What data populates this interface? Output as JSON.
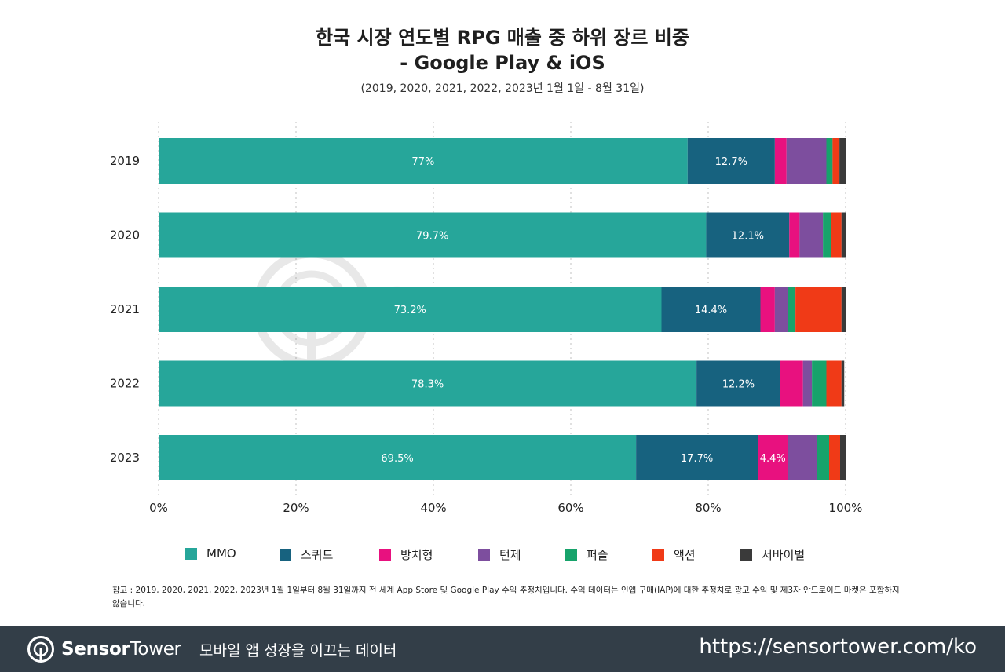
{
  "title_line1": "한국 시장 연도별 RPG 매출 중 하위 장르 비중",
  "title_line2": "- Google Play & iOS",
  "subtitle": "(2019, 2020, 2021, 2022, 2023년 1월 1일 - 8월 31일)",
  "watermark_text": "SensorTower",
  "colors": {
    "MMO": "#26a69a",
    "squad": "#17627f",
    "idle": "#e8117f",
    "turn": "#7d4e9e",
    "puzzle": "#17a36b",
    "action": "#f03a17",
    "survival": "#3a3a3a",
    "footer_bg": "#333e48",
    "grid": "#cfcfcf"
  },
  "chart_data": {
    "type": "bar",
    "orientation": "horizontal",
    "stacked": true,
    "categories": [
      "2019",
      "2020",
      "2021",
      "2022",
      "2023"
    ],
    "xlim": [
      0,
      100
    ],
    "x_ticks": [
      "0%",
      "20%",
      "40%",
      "60%",
      "80%",
      "100%"
    ],
    "grid": true,
    "legend_position": "bottom",
    "series": [
      {
        "name": "MMO",
        "color_key": "MMO",
        "values": [
          77.0,
          79.7,
          73.2,
          78.3,
          69.5
        ],
        "labels": [
          "77%",
          "79.7%",
          "73.2%",
          "78.3%",
          "69.5%"
        ]
      },
      {
        "name": "스쿼드",
        "color_key": "squad",
        "values": [
          12.7,
          12.1,
          14.4,
          12.2,
          17.7
        ],
        "labels": [
          "12.7%",
          "12.1%",
          "14.4%",
          "12.2%",
          "17.7%"
        ]
      },
      {
        "name": "방치형",
        "color_key": "idle",
        "values": [
          1.7,
          1.5,
          2.1,
          3.3,
          4.4
        ],
        "labels": [
          "",
          "",
          "",
          "",
          "4.4%"
        ]
      },
      {
        "name": "턴제",
        "color_key": "turn",
        "values": [
          5.8,
          3.4,
          1.9,
          1.3,
          4.2
        ],
        "labels": [
          "",
          "",
          "",
          "",
          ""
        ]
      },
      {
        "name": "퍼즐",
        "color_key": "puzzle",
        "values": [
          0.9,
          1.2,
          1.1,
          2.1,
          1.8
        ],
        "labels": [
          "",
          "",
          "",
          "",
          ""
        ]
      },
      {
        "name": "액션",
        "color_key": "action",
        "values": [
          1.0,
          1.5,
          6.7,
          2.2,
          1.6
        ],
        "labels": [
          "",
          "",
          "",
          "",
          ""
        ]
      },
      {
        "name": "서바이벌",
        "color_key": "survival",
        "values": [
          0.9,
          0.6,
          0.6,
          0.4,
          0.8
        ],
        "labels": [
          "",
          "",
          "",
          "",
          ""
        ]
      }
    ]
  },
  "footnote": "참고 : 2019, 2020, 2021, 2022, 2023년 1월 1일부터 8월 31일까지 전 세계 App Store 및 Google Play 수익 추정치입니다. 수익 데이터는 인앱 구매(IAP)에 대한 추정치로 광고 수익 및 제3자 안드로이드 마켓은 포함하지 않습니다.",
  "footer": {
    "brand_bold": "Sensor",
    "brand_rest": "Tower",
    "tagline": "모바일 앱 성장을 이끄는 데이터",
    "url": "https://sensortower.com/ko"
  }
}
